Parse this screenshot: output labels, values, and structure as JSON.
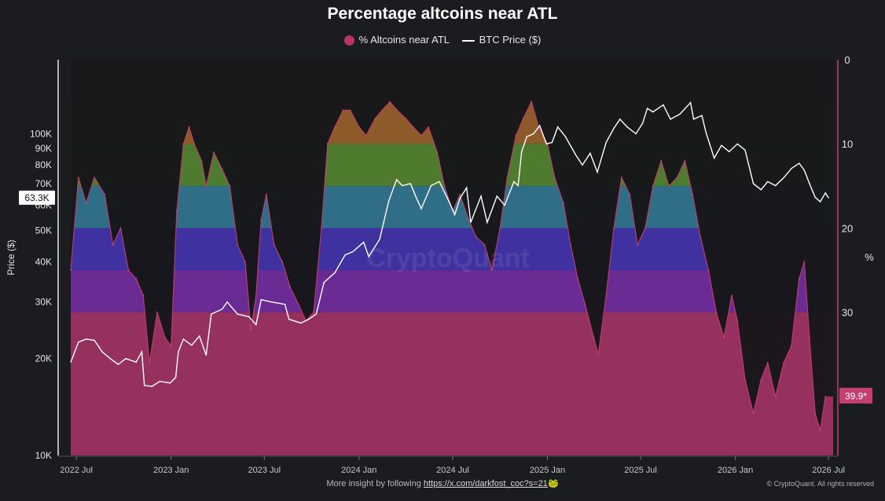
{
  "chart_data": {
    "type": "area",
    "title": "Percentage altcoins near ATL",
    "legend": [
      {
        "label": "% Altcoins near ATL",
        "color": "#b8336a",
        "kind": "dot"
      },
      {
        "label": "BTC Price ($)",
        "color": "#ffffff",
        "kind": "line"
      }
    ],
    "legend_position": "top-center",
    "watermark": "CryptoQuant",
    "x_axis": {
      "ticks": [
        "2022 Jul",
        "2023 Jan",
        "2023 Jul",
        "2024 Jan",
        "2024 Jul",
        "2025 Jan",
        "2025 Jul",
        "2026 Jan",
        "2026 Jul"
      ],
      "range": [
        "2022-06",
        "2026-07"
      ]
    },
    "y_left": {
      "label": "Price ($)",
      "scale": "log",
      "range": [
        10000,
        170000
      ],
      "ticks": [
        {
          "v": 10000,
          "label": "10K"
        },
        {
          "v": 20000,
          "label": "20K"
        },
        {
          "v": 30000,
          "label": "30K"
        },
        {
          "v": 40000,
          "label": "40K"
        },
        {
          "v": 50000,
          "label": "50K"
        },
        {
          "v": 60000,
          "label": "60K"
        },
        {
          "v": 70000,
          "label": "70K"
        },
        {
          "v": 80000,
          "label": "80K"
        },
        {
          "v": 90000,
          "label": "90K"
        },
        {
          "v": 100000,
          "label": "100K"
        }
      ],
      "current": {
        "value": 63300,
        "label": "63.3K"
      }
    },
    "y_right": {
      "label": "%",
      "inverted": true,
      "range": [
        0,
        47
      ],
      "ticks": [
        {
          "v": 0,
          "label": "0"
        },
        {
          "v": 10,
          "label": "10"
        },
        {
          "v": 20,
          "label": "20"
        },
        {
          "v": 30,
          "label": "30"
        }
      ],
      "current": {
        "value": 39.9,
        "label": "39.9*"
      }
    },
    "bands": [
      {
        "from": 0,
        "to": 5,
        "color": "#8c2a2e"
      },
      {
        "from": 5,
        "to": 10,
        "color": "#8d5a2a"
      },
      {
        "from": 10,
        "to": 15,
        "color": "#4e7b2e"
      },
      {
        "from": 15,
        "to": 20,
        "color": "#2f6e86"
      },
      {
        "from": 20,
        "to": 25,
        "color": "#3f32a0"
      },
      {
        "from": 25,
        "to": 30,
        "color": "#6a2c94"
      },
      {
        "from": 30,
        "to": 47,
        "color": "#96305f"
      }
    ],
    "series": [
      {
        "name": "% Altcoins near ATL",
        "axis": "right",
        "points": [
          [
            "2022-06-20",
            25
          ],
          [
            "2022-07-05",
            14
          ],
          [
            "2022-07-20",
            17
          ],
          [
            "2022-08-05",
            14
          ],
          [
            "2022-08-25",
            16
          ],
          [
            "2022-09-10",
            22
          ],
          [
            "2022-09-25",
            20
          ],
          [
            "2022-10-10",
            25
          ],
          [
            "2022-10-25",
            26
          ],
          [
            "2022-11-08",
            28
          ],
          [
            "2022-11-20",
            36
          ],
          [
            "2022-12-05",
            30
          ],
          [
            "2022-12-20",
            33
          ],
          [
            "2023-01-01",
            34
          ],
          [
            "2023-01-12",
            18
          ],
          [
            "2023-01-25",
            10
          ],
          [
            "2023-02-05",
            8
          ],
          [
            "2023-02-15",
            10
          ],
          [
            "2023-03-01",
            12
          ],
          [
            "2023-03-10",
            15
          ],
          [
            "2023-03-25",
            11
          ],
          [
            "2023-04-10",
            13
          ],
          [
            "2023-04-25",
            15
          ],
          [
            "2023-05-10",
            22
          ],
          [
            "2023-05-25",
            24
          ],
          [
            "2023-06-05",
            32
          ],
          [
            "2023-06-15",
            28
          ],
          [
            "2023-06-25",
            19
          ],
          [
            "2023-07-05",
            16
          ],
          [
            "2023-07-20",
            22
          ],
          [
            "2023-08-05",
            24
          ],
          [
            "2023-08-20",
            27
          ],
          [
            "2023-09-05",
            29
          ],
          [
            "2023-09-20",
            31
          ],
          [
            "2023-10-05",
            30
          ],
          [
            "2023-10-20",
            20
          ],
          [
            "2023-11-01",
            10
          ],
          [
            "2023-11-15",
            8
          ],
          [
            "2023-12-01",
            6
          ],
          [
            "2023-12-15",
            6
          ],
          [
            "2024-01-01",
            8
          ],
          [
            "2024-01-15",
            9
          ],
          [
            "2024-02-01",
            7
          ],
          [
            "2024-02-15",
            6
          ],
          [
            "2024-03-01",
            5
          ],
          [
            "2024-03-15",
            6
          ],
          [
            "2024-04-01",
            7
          ],
          [
            "2024-04-15",
            8
          ],
          [
            "2024-05-01",
            9
          ],
          [
            "2024-05-15",
            8
          ],
          [
            "2024-06-01",
            11
          ],
          [
            "2024-06-15",
            15
          ],
          [
            "2024-07-01",
            18
          ],
          [
            "2024-07-15",
            16
          ],
          [
            "2024-08-01",
            19
          ],
          [
            "2024-08-15",
            21
          ],
          [
            "2024-09-01",
            22
          ],
          [
            "2024-09-15",
            25
          ],
          [
            "2024-10-01",
            20
          ],
          [
            "2024-10-15",
            14
          ],
          [
            "2024-11-01",
            9
          ],
          [
            "2024-11-15",
            7
          ],
          [
            "2024-12-01",
            5
          ],
          [
            "2024-12-15",
            8
          ],
          [
            "2025-01-01",
            10
          ],
          [
            "2025-01-15",
            14
          ],
          [
            "2025-02-01",
            17
          ],
          [
            "2025-02-15",
            22
          ],
          [
            "2025-03-01",
            26
          ],
          [
            "2025-03-15",
            29
          ],
          [
            "2025-04-01",
            33
          ],
          [
            "2025-04-10",
            35
          ],
          [
            "2025-04-25",
            28
          ],
          [
            "2025-05-10",
            20
          ],
          [
            "2025-05-25",
            14
          ],
          [
            "2025-06-10",
            16
          ],
          [
            "2025-06-25",
            22
          ],
          [
            "2025-07-10",
            20
          ],
          [
            "2025-07-25",
            15
          ],
          [
            "2025-08-10",
            12
          ],
          [
            "2025-08-25",
            15
          ],
          [
            "2025-09-10",
            14
          ],
          [
            "2025-09-25",
            12
          ],
          [
            "2025-10-10",
            16
          ],
          [
            "2025-10-25",
            21
          ],
          [
            "2025-11-10",
            25
          ],
          [
            "2025-11-25",
            30
          ],
          [
            "2025-12-10",
            33
          ],
          [
            "2025-12-25",
            28
          ],
          [
            "2026-01-05",
            31
          ],
          [
            "2026-01-20",
            38
          ],
          [
            "2026-02-05",
            42
          ],
          [
            "2026-02-20",
            38
          ],
          [
            "2026-03-05",
            36
          ],
          [
            "2026-03-20",
            40
          ],
          [
            "2026-04-05",
            36
          ],
          [
            "2026-04-20",
            34
          ],
          [
            "2026-05-05",
            26
          ],
          [
            "2026-05-15",
            24
          ],
          [
            "2026-05-25",
            33
          ],
          [
            "2026-06-05",
            42
          ],
          [
            "2026-06-15",
            44
          ],
          [
            "2026-06-25",
            40
          ]
        ]
      },
      {
        "name": "BTC Price ($)",
        "axis": "left",
        "points": [
          [
            "2022-06-20",
            19500
          ],
          [
            "2022-07-05",
            22500
          ],
          [
            "2022-07-20",
            23000
          ],
          [
            "2022-08-05",
            22800
          ],
          [
            "2022-08-20",
            21000
          ],
          [
            "2022-09-05",
            20000
          ],
          [
            "2022-09-20",
            19200
          ],
          [
            "2022-10-05",
            20000
          ],
          [
            "2022-10-25",
            19500
          ],
          [
            "2022-11-05",
            21000
          ],
          [
            "2022-11-10",
            16500
          ],
          [
            "2022-11-25",
            16400
          ],
          [
            "2022-12-10",
            17000
          ],
          [
            "2022-12-30",
            16800
          ],
          [
            "2023-01-10",
            17500
          ],
          [
            "2023-01-15",
            21000
          ],
          [
            "2023-01-25",
            23000
          ],
          [
            "2023-02-10",
            22000
          ],
          [
            "2023-02-25",
            23500
          ],
          [
            "2023-03-10",
            20500
          ],
          [
            "2023-03-20",
            27500
          ],
          [
            "2023-04-10",
            28500
          ],
          [
            "2023-04-20",
            30000
          ],
          [
            "2023-05-10",
            27500
          ],
          [
            "2023-06-01",
            27000
          ],
          [
            "2023-06-15",
            25500
          ],
          [
            "2023-06-25",
            30500
          ],
          [
            "2023-07-15",
            30000
          ],
          [
            "2023-08-10",
            29500
          ],
          [
            "2023-08-18",
            26500
          ],
          [
            "2023-09-10",
            25800
          ],
          [
            "2023-09-25",
            26500
          ],
          [
            "2023-10-10",
            27500
          ],
          [
            "2023-10-25",
            34500
          ],
          [
            "2023-11-15",
            37000
          ],
          [
            "2023-12-05",
            42000
          ],
          [
            "2023-12-20",
            43000
          ],
          [
            "2024-01-10",
            46000
          ],
          [
            "2024-01-20",
            41500
          ],
          [
            "2024-02-10",
            47000
          ],
          [
            "2024-02-28",
            62000
          ],
          [
            "2024-03-14",
            72000
          ],
          [
            "2024-03-25",
            69000
          ],
          [
            "2024-04-10",
            70000
          ],
          [
            "2024-04-20",
            64000
          ],
          [
            "2024-05-01",
            58500
          ],
          [
            "2024-05-20",
            69000
          ],
          [
            "2024-06-05",
            71000
          ],
          [
            "2024-06-25",
            61000
          ],
          [
            "2024-07-05",
            56000
          ],
          [
            "2024-07-15",
            63000
          ],
          [
            "2024-07-28",
            68000
          ],
          [
            "2024-08-05",
            53000
          ],
          [
            "2024-08-25",
            64000
          ],
          [
            "2024-09-06",
            53000
          ],
          [
            "2024-09-25",
            64000
          ],
          [
            "2024-10-10",
            60000
          ],
          [
            "2024-10-28",
            71000
          ],
          [
            "2024-11-05",
            69000
          ],
          [
            "2024-11-12",
            88000
          ],
          [
            "2024-11-22",
            98000
          ],
          [
            "2024-12-05",
            100000
          ],
          [
            "2024-12-17",
            106000
          ],
          [
            "2024-12-30",
            93000
          ],
          [
            "2025-01-10",
            94000
          ],
          [
            "2025-01-21",
            105000
          ],
          [
            "2025-02-05",
            98000
          ],
          [
            "2025-02-25",
            86000
          ],
          [
            "2025-03-10",
            80000
          ],
          [
            "2025-03-25",
            87000
          ],
          [
            "2025-04-08",
            76000
          ],
          [
            "2025-04-25",
            94000
          ],
          [
            "2025-05-10",
            104000
          ],
          [
            "2025-05-22",
            111000
          ],
          [
            "2025-06-05",
            105000
          ],
          [
            "2025-06-22",
            100000
          ],
          [
            "2025-07-05",
            108000
          ],
          [
            "2025-07-14",
            120000
          ],
          [
            "2025-07-25",
            117000
          ],
          [
            "2025-08-14",
            123000
          ],
          [
            "2025-08-28",
            111000
          ],
          [
            "2025-09-15",
            115000
          ],
          [
            "2025-10-06",
            125000
          ],
          [
            "2025-10-12",
            111000
          ],
          [
            "2025-10-28",
            114000
          ],
          [
            "2025-11-05",
            101000
          ],
          [
            "2025-11-21",
            84000
          ],
          [
            "2025-12-05",
            92000
          ],
          [
            "2025-12-20",
            88000
          ],
          [
            "2026-01-05",
            93000
          ],
          [
            "2026-01-20",
            89000
          ],
          [
            "2026-02-05",
            70000
          ],
          [
            "2026-02-20",
            67000
          ],
          [
            "2026-03-05",
            71000
          ],
          [
            "2026-03-20",
            69000
          ],
          [
            "2026-04-05",
            73000
          ],
          [
            "2026-04-20",
            78000
          ],
          [
            "2026-05-05",
            81000
          ],
          [
            "2026-05-15",
            77000
          ],
          [
            "2026-05-25",
            70000
          ],
          [
            "2026-06-05",
            63500
          ],
          [
            "2026-06-15",
            61500
          ],
          [
            "2026-06-25",
            65500
          ],
          [
            "2026-07-01",
            63300
          ]
        ]
      }
    ]
  },
  "footer": {
    "text": "More insight by following ",
    "link": "https://x.com/darkfost_coc?s=21",
    "emoji": "🐸",
    "copyright": "© CryptoQuant. All rights reserved"
  }
}
